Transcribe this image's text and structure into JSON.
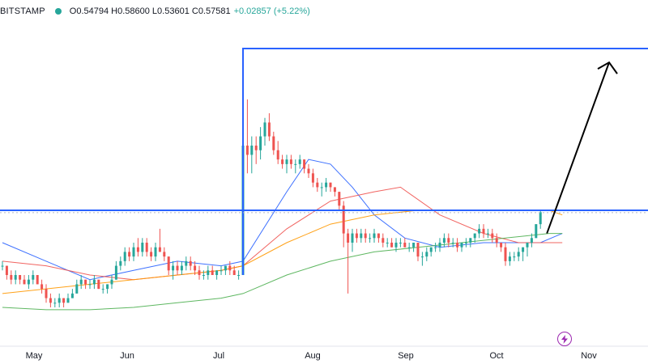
{
  "header": {
    "exchange": "BITSTAMP",
    "ohlc": "O0.54794  H0.58600  L0.53601  C0.57581",
    "change": "+0.02857 (+5.22%)"
  },
  "colors": {
    "up": "#26a69a",
    "down": "#ef5350",
    "ma_fast": "#2962ff",
    "ma_mid": "#ef5350",
    "ma_slow": "#ff9800",
    "ma_long": "#4caf50",
    "hline": "#2962ff",
    "arrow": "#000000",
    "badge": "#9c27b0"
  },
  "icons": {
    "badge": "lightning-icon"
  },
  "chart_data": {
    "type": "candlestick",
    "symbol_exchange": "BITSTAMP",
    "x_unit": "date (May–Oct, daily)",
    "x_ticks": [
      "May",
      "Jun",
      "Jul",
      "Aug",
      "Sep",
      "Oct",
      "Nov"
    ],
    "price_range": [
      0.3,
      1.0
    ],
    "candles_ohlc": [
      [
        0.46,
        0.47,
        0.45,
        0.46
      ],
      [
        0.46,
        0.46,
        0.43,
        0.44
      ],
      [
        0.44,
        0.45,
        0.42,
        0.43
      ],
      [
        0.43,
        0.45,
        0.42,
        0.44
      ],
      [
        0.44,
        0.44,
        0.42,
        0.43
      ],
      [
        0.43,
        0.44,
        0.42,
        0.42
      ],
      [
        0.42,
        0.44,
        0.41,
        0.43
      ],
      [
        0.43,
        0.45,
        0.42,
        0.44
      ],
      [
        0.44,
        0.44,
        0.42,
        0.42
      ],
      [
        0.42,
        0.43,
        0.4,
        0.41
      ],
      [
        0.41,
        0.42,
        0.38,
        0.39
      ],
      [
        0.39,
        0.4,
        0.37,
        0.38
      ],
      [
        0.38,
        0.39,
        0.37,
        0.38
      ],
      [
        0.38,
        0.4,
        0.37,
        0.39
      ],
      [
        0.39,
        0.39,
        0.37,
        0.38
      ],
      [
        0.38,
        0.4,
        0.38,
        0.39
      ],
      [
        0.39,
        0.41,
        0.39,
        0.4
      ],
      [
        0.4,
        0.43,
        0.4,
        0.42
      ],
      [
        0.42,
        0.44,
        0.41,
        0.43
      ],
      [
        0.43,
        0.43,
        0.41,
        0.42
      ],
      [
        0.42,
        0.43,
        0.41,
        0.42
      ],
      [
        0.42,
        0.44,
        0.41,
        0.43
      ],
      [
        0.43,
        0.43,
        0.41,
        0.41
      ],
      [
        0.41,
        0.42,
        0.4,
        0.41
      ],
      [
        0.41,
        0.42,
        0.4,
        0.42
      ],
      [
        0.42,
        0.44,
        0.41,
        0.43
      ],
      [
        0.43,
        0.47,
        0.43,
        0.46
      ],
      [
        0.46,
        0.48,
        0.45,
        0.47
      ],
      [
        0.47,
        0.5,
        0.46,
        0.49
      ],
      [
        0.49,
        0.5,
        0.47,
        0.48
      ],
      [
        0.48,
        0.51,
        0.47,
        0.5
      ],
      [
        0.5,
        0.52,
        0.48,
        0.49
      ],
      [
        0.49,
        0.52,
        0.48,
        0.51
      ],
      [
        0.51,
        0.52,
        0.48,
        0.49
      ],
      [
        0.49,
        0.5,
        0.47,
        0.48
      ],
      [
        0.48,
        0.51,
        0.47,
        0.5
      ],
      [
        0.5,
        0.54,
        0.49,
        0.49
      ],
      [
        0.49,
        0.5,
        0.47,
        0.48
      ],
      [
        0.48,
        0.48,
        0.44,
        0.45
      ],
      [
        0.45,
        0.47,
        0.43,
        0.46
      ],
      [
        0.46,
        0.47,
        0.44,
        0.45
      ],
      [
        0.45,
        0.47,
        0.44,
        0.46
      ],
      [
        0.46,
        0.48,
        0.45,
        0.47
      ],
      [
        0.47,
        0.48,
        0.45,
        0.46
      ],
      [
        0.46,
        0.47,
        0.44,
        0.45
      ],
      [
        0.45,
        0.46,
        0.43,
        0.44
      ],
      [
        0.44,
        0.45,
        0.43,
        0.44
      ],
      [
        0.44,
        0.46,
        0.43,
        0.45
      ],
      [
        0.45,
        0.46,
        0.44,
        0.44
      ],
      [
        0.44,
        0.45,
        0.43,
        0.45
      ],
      [
        0.45,
        0.46,
        0.44,
        0.45
      ],
      [
        0.45,
        0.46,
        0.44,
        0.46
      ],
      [
        0.46,
        0.47,
        0.44,
        0.45
      ],
      [
        0.45,
        0.46,
        0.44,
        0.44
      ],
      [
        0.44,
        0.45,
        0.43,
        0.44
      ],
      [
        0.44,
        0.77,
        0.44,
        0.72
      ],
      [
        0.72,
        0.82,
        0.66,
        0.7
      ],
      [
        0.7,
        0.74,
        0.66,
        0.72
      ],
      [
        0.72,
        0.74,
        0.68,
        0.71
      ],
      [
        0.71,
        0.76,
        0.69,
        0.74
      ],
      [
        0.74,
        0.78,
        0.72,
        0.77
      ],
      [
        0.77,
        0.79,
        0.73,
        0.74
      ],
      [
        0.74,
        0.75,
        0.7,
        0.71
      ],
      [
        0.71,
        0.73,
        0.68,
        0.69
      ],
      [
        0.69,
        0.7,
        0.67,
        0.68
      ],
      [
        0.68,
        0.7,
        0.66,
        0.69
      ],
      [
        0.69,
        0.7,
        0.67,
        0.68
      ],
      [
        0.68,
        0.69,
        0.66,
        0.68
      ],
      [
        0.68,
        0.7,
        0.67,
        0.69
      ],
      [
        0.69,
        0.69,
        0.66,
        0.67
      ],
      [
        0.67,
        0.68,
        0.65,
        0.66
      ],
      [
        0.66,
        0.67,
        0.63,
        0.64
      ],
      [
        0.64,
        0.65,
        0.62,
        0.63
      ],
      [
        0.63,
        0.64,
        0.61,
        0.63
      ],
      [
        0.63,
        0.65,
        0.62,
        0.64
      ],
      [
        0.64,
        0.64,
        0.62,
        0.63
      ],
      [
        0.63,
        0.63,
        0.61,
        0.62
      ],
      [
        0.62,
        0.62,
        0.58,
        0.59
      ],
      [
        0.59,
        0.6,
        0.5,
        0.53
      ],
      [
        0.53,
        0.54,
        0.4,
        0.51
      ],
      [
        0.51,
        0.54,
        0.49,
        0.53
      ],
      [
        0.53,
        0.54,
        0.51,
        0.52
      ],
      [
        0.52,
        0.54,
        0.51,
        0.53
      ],
      [
        0.53,
        0.54,
        0.51,
        0.52
      ],
      [
        0.52,
        0.53,
        0.51,
        0.52
      ],
      [
        0.52,
        0.54,
        0.51,
        0.53
      ],
      [
        0.53,
        0.53,
        0.51,
        0.52
      ],
      [
        0.52,
        0.53,
        0.5,
        0.51
      ],
      [
        0.51,
        0.52,
        0.5,
        0.51
      ],
      [
        0.51,
        0.52,
        0.5,
        0.5
      ],
      [
        0.5,
        0.52,
        0.49,
        0.51
      ],
      [
        0.51,
        0.52,
        0.5,
        0.51
      ],
      [
        0.51,
        0.52,
        0.5,
        0.5
      ],
      [
        0.5,
        0.51,
        0.49,
        0.5
      ],
      [
        0.5,
        0.51,
        0.49,
        0.51
      ],
      [
        0.51,
        0.51,
        0.47,
        0.48
      ],
      [
        0.48,
        0.49,
        0.46,
        0.48
      ],
      [
        0.48,
        0.5,
        0.47,
        0.49
      ],
      [
        0.49,
        0.5,
        0.48,
        0.5
      ],
      [
        0.5,
        0.51,
        0.49,
        0.5
      ],
      [
        0.5,
        0.52,
        0.49,
        0.51
      ],
      [
        0.51,
        0.53,
        0.5,
        0.52
      ],
      [
        0.52,
        0.53,
        0.5,
        0.51
      ],
      [
        0.51,
        0.52,
        0.5,
        0.51
      ],
      [
        0.51,
        0.52,
        0.49,
        0.5
      ],
      [
        0.5,
        0.51,
        0.49,
        0.51
      ],
      [
        0.51,
        0.52,
        0.5,
        0.51
      ],
      [
        0.51,
        0.52,
        0.5,
        0.52
      ],
      [
        0.52,
        0.53,
        0.51,
        0.53
      ],
      [
        0.53,
        0.55,
        0.52,
        0.54
      ],
      [
        0.54,
        0.55,
        0.52,
        0.53
      ],
      [
        0.53,
        0.54,
        0.52,
        0.53
      ],
      [
        0.53,
        0.54,
        0.51,
        0.52
      ],
      [
        0.52,
        0.53,
        0.5,
        0.51
      ],
      [
        0.51,
        0.51,
        0.49,
        0.5
      ],
      [
        0.5,
        0.51,
        0.46,
        0.47
      ],
      [
        0.47,
        0.49,
        0.46,
        0.48
      ],
      [
        0.48,
        0.49,
        0.47,
        0.48
      ],
      [
        0.48,
        0.5,
        0.47,
        0.49
      ],
      [
        0.49,
        0.5,
        0.47,
        0.5
      ],
      [
        0.5,
        0.51,
        0.48,
        0.51
      ],
      [
        0.51,
        0.53,
        0.5,
        0.52
      ],
      [
        0.52,
        0.55,
        0.52,
        0.55
      ],
      [
        0.55,
        0.58,
        0.54,
        0.576
      ]
    ],
    "moving_averages": [
      {
        "color_key": "ma_fast",
        "values": [
          [
            0,
            0.51
          ],
          [
            10,
            0.47
          ],
          [
            20,
            0.43
          ],
          [
            30,
            0.45
          ],
          [
            40,
            0.47
          ],
          [
            50,
            0.46
          ],
          [
            55,
            0.47
          ],
          [
            65,
            0.62
          ],
          [
            70,
            0.69
          ],
          [
            75,
            0.68
          ],
          [
            80,
            0.63
          ],
          [
            85,
            0.57
          ],
          [
            92,
            0.52
          ],
          [
            100,
            0.5
          ],
          [
            110,
            0.51
          ],
          [
            118,
            0.51
          ],
          [
            123,
            0.51
          ],
          [
            128,
            0.53
          ]
        ]
      },
      {
        "color_key": "ma_mid",
        "values": [
          [
            0,
            0.47
          ],
          [
            10,
            0.46
          ],
          [
            20,
            0.44
          ],
          [
            30,
            0.43
          ],
          [
            40,
            0.44
          ],
          [
            50,
            0.45
          ],
          [
            55,
            0.46
          ],
          [
            65,
            0.54
          ],
          [
            75,
            0.6
          ],
          [
            85,
            0.62
          ],
          [
            91,
            0.63
          ],
          [
            100,
            0.57
          ],
          [
            110,
            0.53
          ],
          [
            118,
            0.51
          ],
          [
            128,
            0.51
          ]
        ]
      },
      {
        "color_key": "ma_slow",
        "values": [
          [
            0,
            0.4
          ],
          [
            10,
            0.41
          ],
          [
            20,
            0.42
          ],
          [
            30,
            0.43
          ],
          [
            40,
            0.44
          ],
          [
            50,
            0.45
          ],
          [
            55,
            0.46
          ],
          [
            65,
            0.51
          ],
          [
            75,
            0.55
          ],
          [
            85,
            0.57
          ],
          [
            95,
            0.58
          ],
          [
            105,
            0.58
          ],
          [
            115,
            0.58
          ],
          [
            125,
            0.58
          ],
          [
            128,
            0.57
          ]
        ]
      },
      {
        "color_key": "ma_long",
        "values": [
          [
            0,
            0.37
          ],
          [
            10,
            0.365
          ],
          [
            20,
            0.365
          ],
          [
            30,
            0.37
          ],
          [
            40,
            0.38
          ],
          [
            50,
            0.39
          ],
          [
            55,
            0.4
          ],
          [
            65,
            0.44
          ],
          [
            75,
            0.47
          ],
          [
            85,
            0.49
          ],
          [
            95,
            0.5
          ],
          [
            105,
            0.51
          ],
          [
            115,
            0.52
          ],
          [
            125,
            0.53
          ],
          [
            128,
            0.53
          ]
        ]
      }
    ],
    "horizontal_levels": [
      0.58,
      0.93
    ],
    "projection_arrow": {
      "from_price": 0.53,
      "to_price": 0.9
    }
  }
}
